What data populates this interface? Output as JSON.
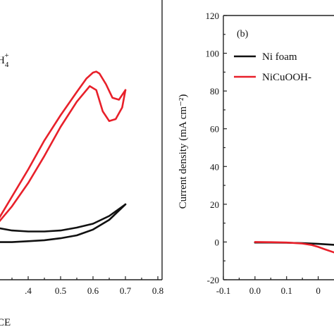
{
  "chart_data": [
    {
      "type": "line",
      "panel_text": "H4+",
      "xlabel_fragment": "CE",
      "xlim": [
        0.3,
        0.8
      ],
      "x_ticks": [
        ".4",
        "0.5",
        "0.6",
        "0.7",
        "0.8"
      ],
      "y_ticks": [],
      "series": [
        {
          "color": "#e8202a",
          "segments": [
            [
              [
                0.3,
                0.1
              ],
              [
                0.35,
                0.24
              ],
              [
                0.4,
                0.38
              ],
              [
                0.45,
                0.53
              ],
              [
                0.5,
                0.66
              ],
              [
                0.55,
                0.78
              ],
              [
                0.58,
                0.85
              ],
              [
                0.6,
                0.88
              ],
              [
                0.61,
                0.885
              ],
              [
                0.62,
                0.875
              ],
              [
                0.64,
                0.82
              ],
              [
                0.66,
                0.75
              ],
              [
                0.68,
                0.74
              ],
              [
                0.7,
                0.79
              ]
            ],
            [
              [
                0.7,
                0.79
              ],
              [
                0.69,
                0.7
              ],
              [
                0.67,
                0.64
              ],
              [
                0.65,
                0.63
              ],
              [
                0.63,
                0.68
              ],
              [
                0.61,
                0.79
              ],
              [
                0.59,
                0.81
              ],
              [
                0.55,
                0.73
              ],
              [
                0.5,
                0.6
              ],
              [
                0.45,
                0.45
              ],
              [
                0.4,
                0.31
              ],
              [
                0.35,
                0.19
              ],
              [
                0.3,
                0.09
              ]
            ]
          ]
        },
        {
          "color": "#111111",
          "segments": [
            [
              [
                0.3,
                0.08
              ],
              [
                0.35,
                0.065
              ],
              [
                0.4,
                0.06
              ],
              [
                0.45,
                0.06
              ],
              [
                0.5,
                0.065
              ],
              [
                0.55,
                0.08
              ],
              [
                0.6,
                0.1
              ],
              [
                0.65,
                0.14
              ],
              [
                0.7,
                0.2
              ]
            ],
            [
              [
                0.7,
                0.2
              ],
              [
                0.65,
                0.12
              ],
              [
                0.6,
                0.07
              ],
              [
                0.55,
                0.04
              ],
              [
                0.5,
                0.025
              ],
              [
                0.45,
                0.015
              ],
              [
                0.4,
                0.01
              ],
              [
                0.35,
                0.005
              ],
              [
                0.3,
                0.005
              ]
            ]
          ]
        }
      ]
    },
    {
      "type": "line",
      "panel_label": "(b)",
      "ylabel": "Current density (mA cm⁻²)",
      "xlim": [
        -0.1,
        0.25
      ],
      "ylim": [
        -20,
        120
      ],
      "x_ticks": [
        "-0.1",
        "0.0",
        "0.1",
        "0"
      ],
      "y_ticks": [
        "120",
        "100",
        "80",
        "60",
        "40",
        "20",
        "0",
        "-20"
      ],
      "series": [
        {
          "name": "Ni foam",
          "color": "#111111",
          "x": [
            0.0,
            0.05,
            0.1,
            0.15,
            0.2,
            0.25
          ],
          "y": [
            -0.3,
            -0.3,
            -0.4,
            -0.6,
            -1.0,
            -1.5
          ]
        },
        {
          "name": "NiCuOOH-",
          "color": "#e8202a",
          "x": [
            0.0,
            0.05,
            0.1,
            0.15,
            0.18,
            0.2,
            0.22,
            0.25
          ],
          "y": [
            0,
            -0.1,
            -0.3,
            -0.8,
            -1.6,
            -2.6,
            -3.8,
            -5.5
          ]
        }
      ]
    }
  ]
}
